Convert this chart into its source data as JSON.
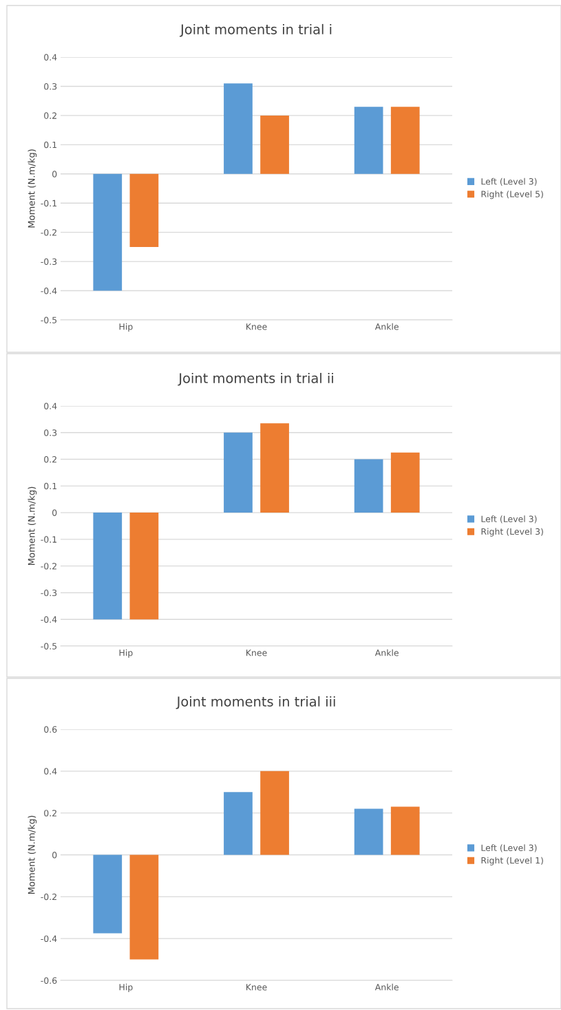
{
  "chart_data": [
    {
      "type": "bar",
      "title": "Joint moments in trial i",
      "ylabel": "Moment (N.m/kg)",
      "categories": [
        "Hip",
        "Knee",
        "Ankle"
      ],
      "series": [
        {
          "name": "Left (Level 3)",
          "color": "#5b9bd5",
          "values": [
            -0.4,
            0.31,
            0.23
          ]
        },
        {
          "name": "Right (Level 5)",
          "color": "#ed7d31",
          "values": [
            -0.25,
            0.2,
            0.23
          ]
        }
      ],
      "ylim": [
        -0.5,
        0.4
      ],
      "yticks": [
        -0.5,
        -0.4,
        -0.3,
        -0.2,
        -0.1,
        0,
        0.1,
        0.2,
        0.3,
        0.4
      ],
      "grid": "y",
      "legend": "right"
    },
    {
      "type": "bar",
      "title": "Joint moments in trial ii",
      "ylabel": "Moment (N.m/kg)",
      "categories": [
        "Hip",
        "Knee",
        "Ankle"
      ],
      "series": [
        {
          "name": "Left (Level 3)",
          "color": "#5b9bd5",
          "values": [
            -0.4,
            0.3,
            0.2
          ]
        },
        {
          "name": "Right (Level 3)",
          "color": "#ed7d31",
          "values": [
            -0.4,
            0.335,
            0.225
          ]
        }
      ],
      "ylim": [
        -0.5,
        0.4
      ],
      "yticks": [
        -0.5,
        -0.4,
        -0.3,
        -0.2,
        -0.1,
        0,
        0.1,
        0.2,
        0.3,
        0.4
      ],
      "grid": "y",
      "legend": "right"
    },
    {
      "type": "bar",
      "title": "Joint moments in trial iii",
      "ylabel": "Moment (N.m/kg)",
      "categories": [
        "Hip",
        "Knee",
        "Ankle"
      ],
      "series": [
        {
          "name": "Left (Level 3)",
          "color": "#5b9bd5",
          "values": [
            -0.375,
            0.3,
            0.22
          ]
        },
        {
          "name": "Right (Level 1)",
          "color": "#ed7d31",
          "values": [
            -0.5,
            0.4,
            0.23
          ]
        }
      ],
      "ylim": [
        -0.6,
        0.6
      ],
      "yticks": [
        -0.6,
        -0.4,
        -0.2,
        0,
        0.2,
        0.4,
        0.6
      ],
      "grid": "y",
      "legend": "right"
    }
  ]
}
